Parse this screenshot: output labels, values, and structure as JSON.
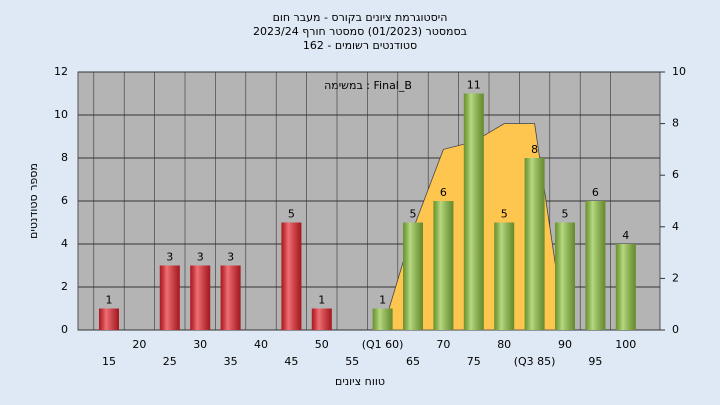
{
  "chart_data": {
    "type": "bar",
    "title": "היסטוגרמת ציונים בקורס - מעבר חום",
    "subtitle": "בסמסטר  (01/2023)  סמסטר חורף 2023/24",
    "subtitle2": "סטודנטים רשומים - 162",
    "annotation": "במשימה : Final_B",
    "y_label": "מספר סטודנטים",
    "x_label": "טווח ציונים",
    "categories": [
      "15",
      "20",
      "25",
      "30",
      "35",
      "40",
      "45",
      "50",
      "55",
      "(Q1 60)",
      "65",
      "70",
      "75",
      "80",
      "(Q3 85)",
      "90",
      "95",
      "100"
    ],
    "values": [
      1,
      0,
      3,
      3,
      3,
      0,
      5,
      1,
      0,
      1,
      5,
      6,
      11,
      5,
      8,
      5,
      6,
      4
    ],
    "colors": [
      "#e8222a",
      "#e8222a",
      "#e8222a",
      "#e8222a",
      "#e8222a",
      "#e8222a",
      "#e8222a",
      "#e8222a",
      "#e8222a",
      "#8fc43e",
      "#8fc43e",
      "#8fc43e",
      "#8fc43e",
      "#8fc43e",
      "#8fc43e",
      "#8fc43e",
      "#8fc43e",
      "#8fc43e"
    ],
    "area_values": [
      null,
      null,
      null,
      null,
      null,
      null,
      null,
      null,
      null,
      0,
      3.9,
      7,
      7.3,
      8,
      8,
      0,
      null,
      null
    ],
    "area_color": "#ffc64f",
    "ylim": [
      0,
      12
    ],
    "yticks": [
      0,
      2,
      4,
      6,
      8,
      10,
      12
    ],
    "y2lim": [
      0,
      10
    ],
    "y2ticks": [
      0,
      2,
      4,
      6,
      8,
      10
    ],
    "grid": true
  }
}
